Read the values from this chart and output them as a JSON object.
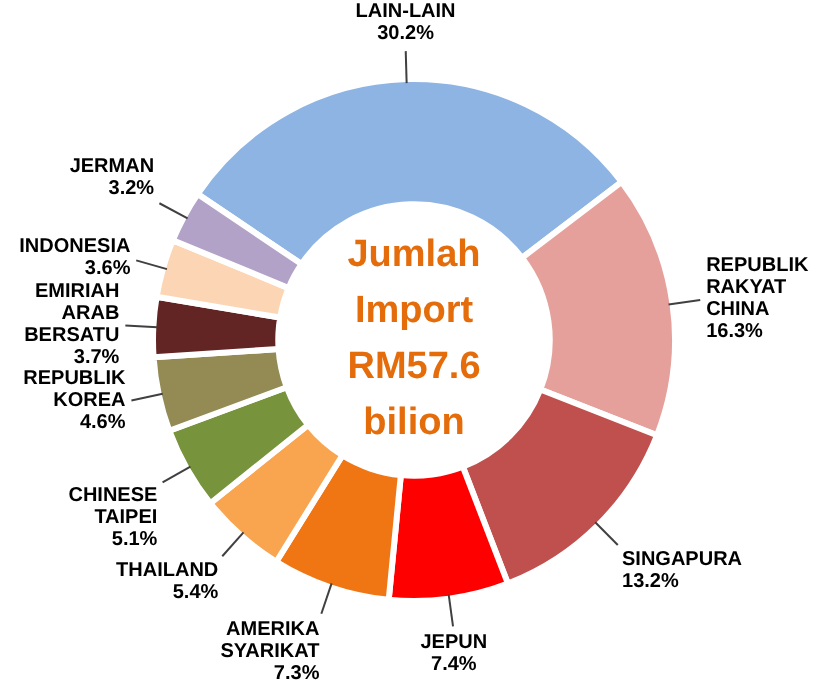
{
  "chart_data": {
    "type": "donut",
    "title": "Jumlah Import RM57.6 bilion",
    "categories": [
      "LAIN-LAIN",
      "REPUBLIK RAKYAT CHINA",
      "SINGAPURA",
      "JEPUN",
      "AMERIKA SYARIKAT",
      "THAILAND",
      "CHINESE TAIPEI",
      "REPUBLIK KOREA",
      "EMIRIAH ARAB BERSATU",
      "INDONESIA",
      "JERMAN"
    ],
    "values": [
      30.2,
      16.3,
      13.2,
      7.4,
      7.3,
      5.4,
      5.1,
      4.6,
      3.7,
      3.6,
      3.2
    ],
    "value_labels": [
      "30.2%",
      "16.3%",
      "13.2%",
      "7.4%",
      "7.3%",
      "5.4%",
      "5.1%",
      "4.6%",
      "3.7%",
      "3.6%",
      "3.2%"
    ],
    "colors": [
      "#8db4e2",
      "#e6a09c",
      "#c0504d",
      "#ff0000",
      "#f07614",
      "#f9a54f",
      "#77933c",
      "#948a54",
      "#632523",
      "#fcd5b4",
      "#b3a2c7"
    ],
    "legend": false
  }
}
